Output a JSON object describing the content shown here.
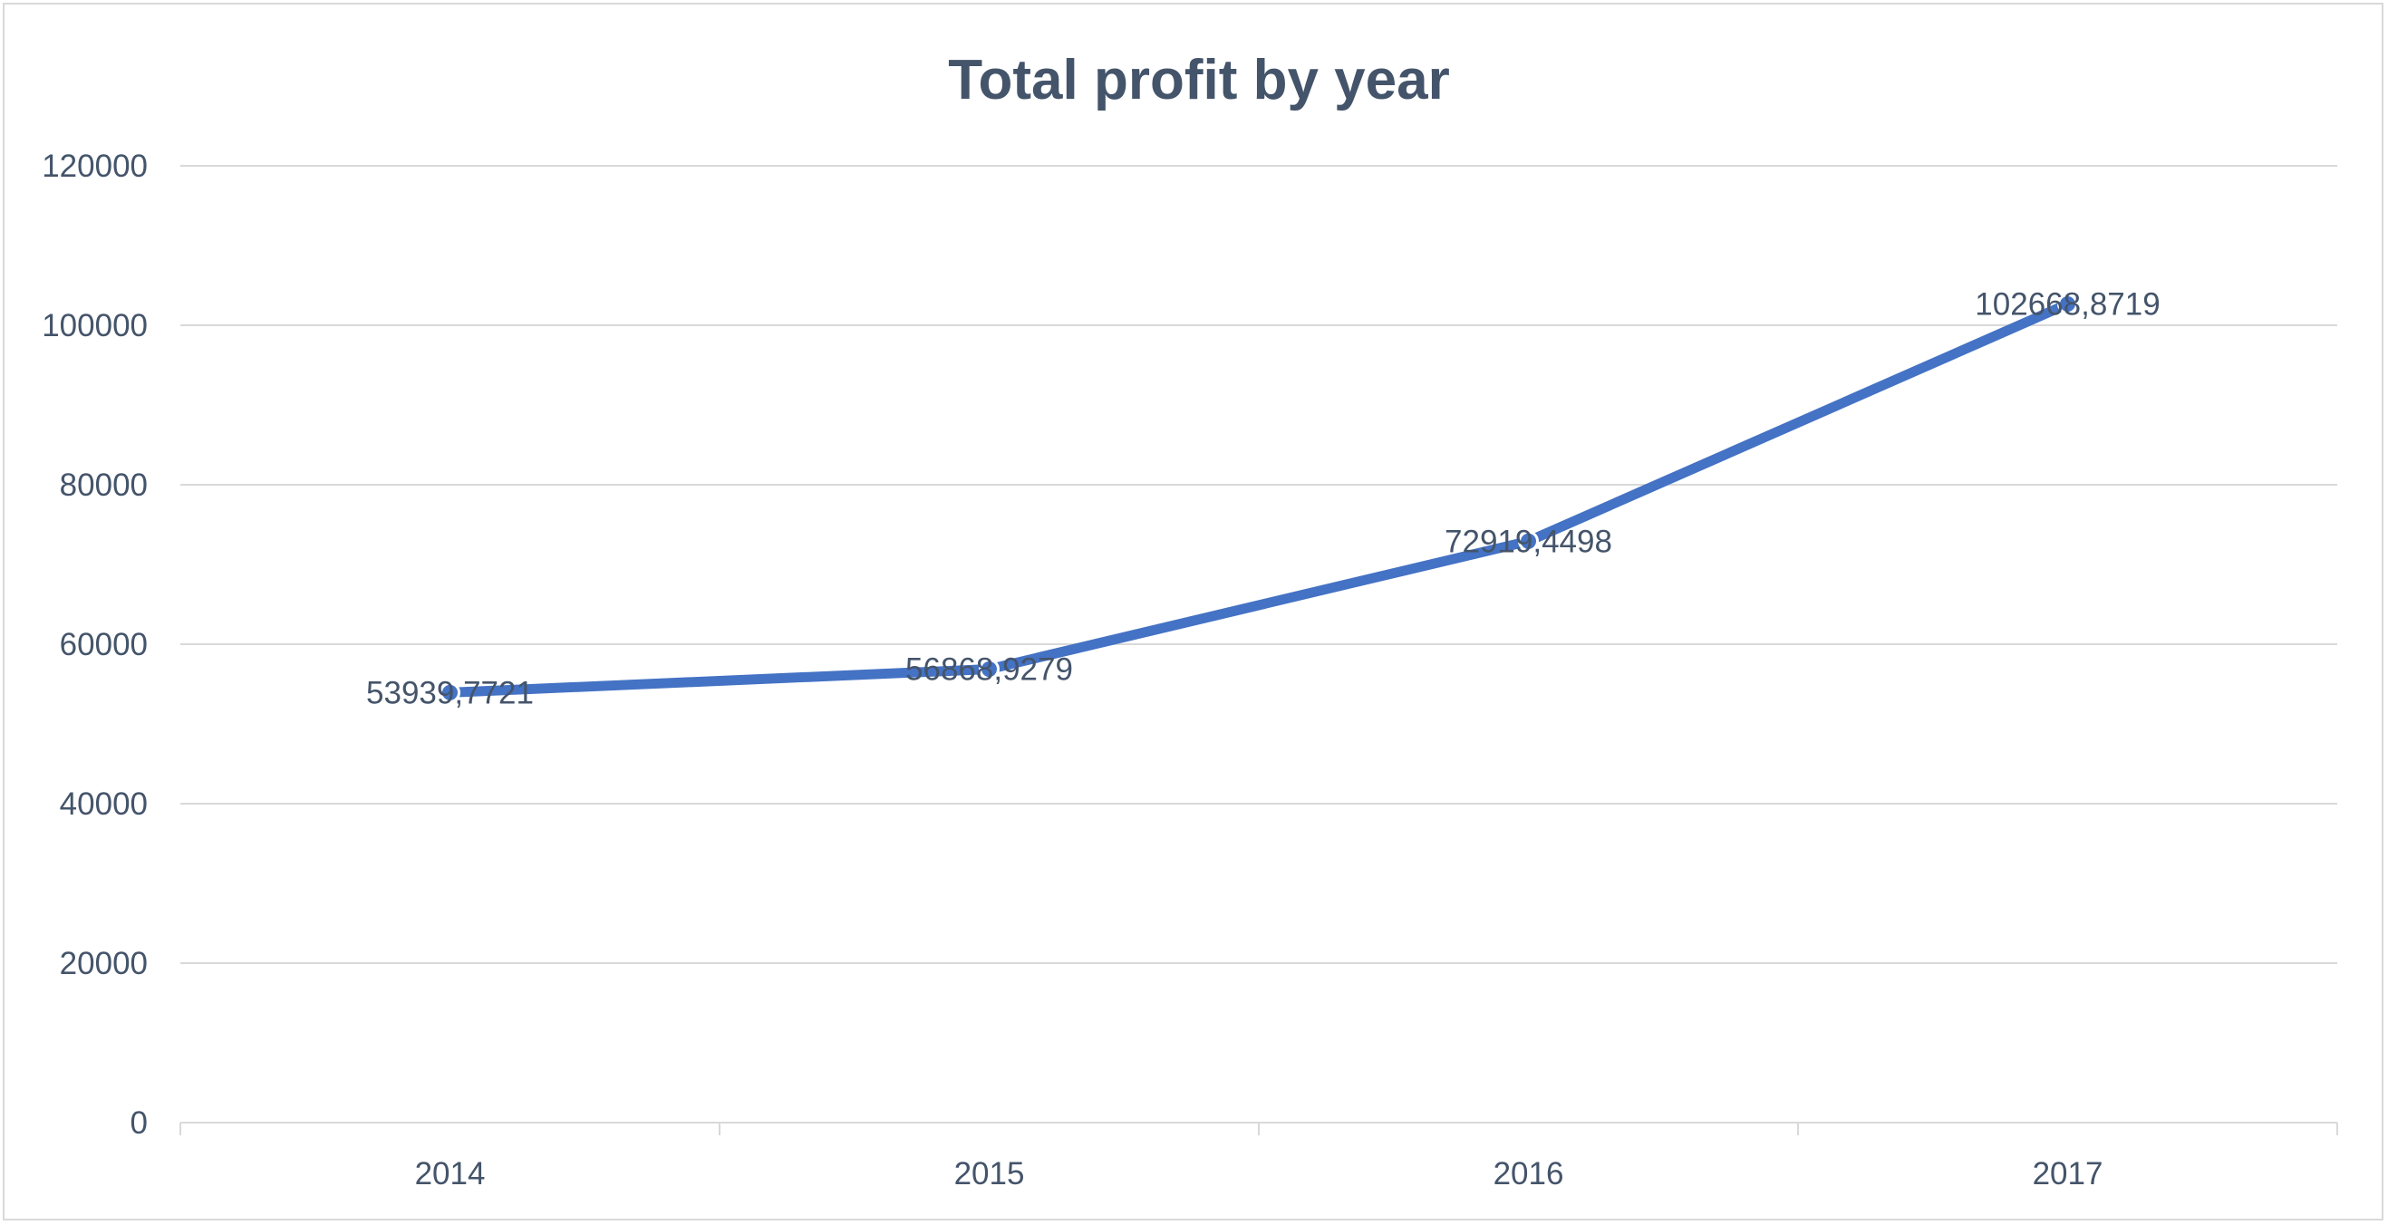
{
  "chart_data": {
    "type": "line",
    "title": "Total profit by year",
    "xlabel": "",
    "ylabel": "",
    "categories": [
      "2014",
      "2015",
      "2016",
      "2017"
    ],
    "series": [
      {
        "values": [
          53939.7721,
          56868.9279,
          72919.4498,
          102668.8719
        ],
        "data_labels": [
          "53939,7721",
          "56868,9279",
          "72919,4498",
          "102668,8719"
        ],
        "color": "#4472c4"
      }
    ],
    "y_ticks": [
      "0",
      "20000",
      "40000",
      "60000",
      "80000",
      "100000",
      "120000"
    ],
    "ylim": [
      0,
      120000
    ],
    "grid": true,
    "legend": "none"
  }
}
